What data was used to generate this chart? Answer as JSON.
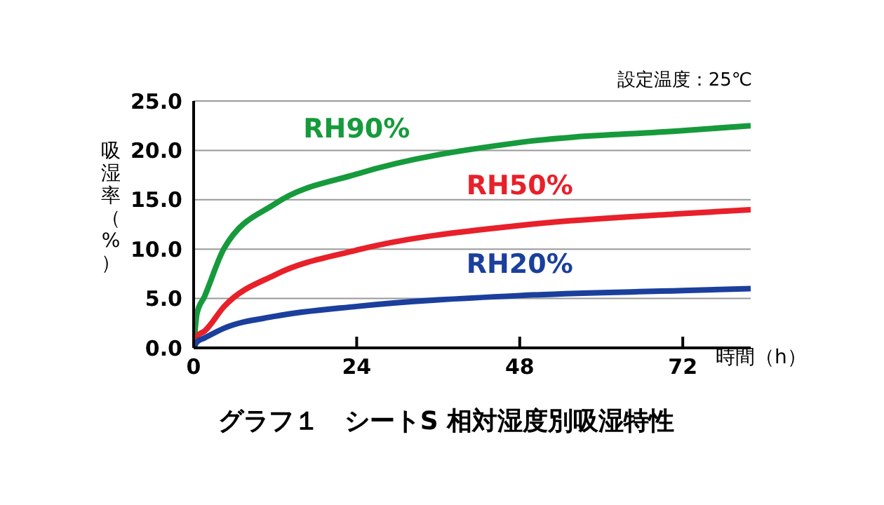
{
  "chart_data": {
    "type": "line",
    "title": "グラフ１　シートS 相対湿度別吸湿特性",
    "xlabel": "時間（h）",
    "ylabel": "吸湿率（%）",
    "annotations": [
      "設定温度：25℃"
    ],
    "x": [
      0,
      0.5,
      1.6,
      4.5,
      12,
      24,
      48,
      72,
      82
    ],
    "series": [
      {
        "name": "RH90%",
        "color": "#169a3c",
        "values": [
          0,
          3.5,
          5.2,
          10.1,
          14.6,
          17.6,
          20.8,
          22.0,
          22.5
        ]
      },
      {
        "name": "RH50%",
        "color": "#e8202a",
        "values": [
          0,
          1.2,
          1.7,
          4.2,
          7.4,
          9.9,
          12.4,
          13.6,
          14.0
        ]
      },
      {
        "name": "RH20%",
        "color": "#1b3f9c",
        "values": [
          0,
          0.6,
          1.0,
          2.0,
          3.2,
          4.2,
          5.3,
          5.8,
          6.0
        ]
      }
    ],
    "xlim": [
      0,
      82
    ],
    "xticks": [
      0,
      24,
      48,
      72
    ],
    "ylim": [
      0,
      25
    ],
    "yticks": [
      {
        "value": 0,
        "label": "0.0"
      },
      {
        "value": 5,
        "label": "5.0"
      },
      {
        "value": 10,
        "label": "10.0"
      },
      {
        "value": 15,
        "label": "15.0"
      },
      {
        "value": 20,
        "label": "20.0"
      },
      {
        "value": 25,
        "label": "25.0"
      }
    ],
    "grid": "y",
    "legend": false,
    "marker": "none",
    "line_style": "solid"
  }
}
